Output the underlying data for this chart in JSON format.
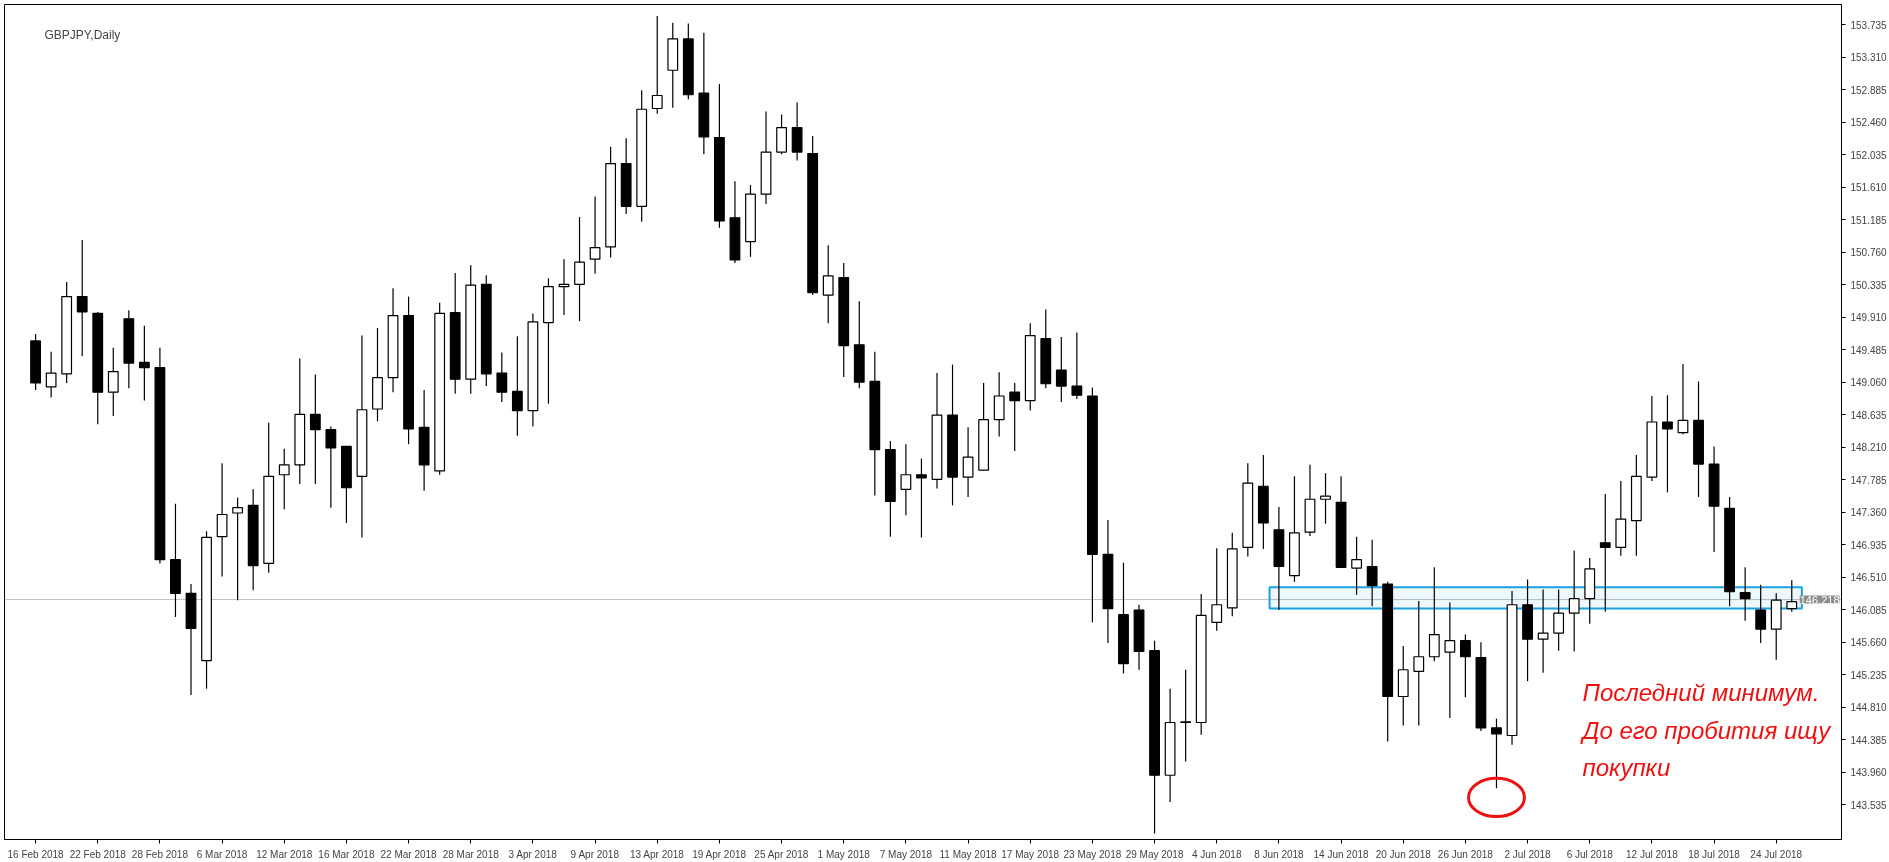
{
  "chart_data": {
    "type": "candlestick",
    "title": "GBPJPY,Daily",
    "categories": [
      "16 Feb 2018",
      null,
      null,
      null,
      "22 Feb 2018",
      null,
      null,
      null,
      "28 Feb 2018",
      null,
      null,
      null,
      "6 Mar 2018",
      null,
      null,
      null,
      "12 Mar 2018",
      null,
      null,
      null,
      "16 Mar 2018",
      null,
      null,
      null,
      "22 Mar 2018",
      null,
      null,
      null,
      "28 Mar 2018",
      null,
      null,
      null,
      "3 Apr 2018",
      null,
      null,
      null,
      "9 Apr 2018",
      null,
      null,
      null,
      "13 Apr 2018",
      null,
      null,
      null,
      "19 Apr 2018",
      null,
      null,
      null,
      "25 Apr 2018",
      null,
      null,
      null,
      "1 May 2018",
      null,
      null,
      null,
      "7 May 2018",
      null,
      null,
      null,
      "11 May 2018",
      null,
      null,
      null,
      "17 May 2018",
      null,
      null,
      null,
      "23 May 2018",
      null,
      null,
      null,
      "29 May 2018",
      null,
      null,
      null,
      "4 Jun 2018",
      null,
      null,
      null,
      "8 Jun 2018",
      null,
      null,
      null,
      "14 Jun 2018",
      null,
      null,
      null,
      "20 Jun 2018",
      null,
      null,
      null,
      "26 Jun 2018",
      null,
      null,
      null,
      "2 Jul 2018",
      null,
      null,
      null,
      "6 Jul 2018",
      null,
      null,
      null,
      "12 Jul 2018",
      null,
      null,
      null,
      "18 Jul 2018",
      null,
      null,
      null,
      "24 Jul 2018",
      null
    ],
    "ohlc": [
      [
        149.6,
        149.69,
        148.96,
        149.05
      ],
      [
        149.0,
        149.46,
        148.86,
        149.18
      ],
      [
        149.17,
        150.37,
        149.05,
        150.18
      ],
      [
        150.18,
        150.92,
        149.4,
        149.98
      ],
      [
        149.96,
        149.98,
        148.51,
        148.93
      ],
      [
        148.93,
        149.51,
        148.62,
        149.2
      ],
      [
        149.89,
        150.0,
        148.98,
        149.31
      ],
      [
        149.32,
        149.8,
        148.82,
        149.25
      ],
      [
        149.25,
        149.51,
        146.69,
        146.74
      ],
      [
        146.74,
        147.47,
        145.99,
        146.3
      ],
      [
        146.3,
        146.42,
        144.97,
        145.84
      ],
      [
        145.42,
        147.11,
        145.05,
        147.03
      ],
      [
        147.04,
        148.0,
        146.52,
        147.33
      ],
      [
        147.35,
        147.55,
        146.21,
        147.42
      ],
      [
        147.45,
        147.66,
        146.34,
        146.66
      ],
      [
        146.69,
        148.53,
        146.57,
        147.83
      ],
      [
        147.85,
        148.19,
        147.4,
        147.98
      ],
      [
        147.98,
        149.37,
        147.73,
        148.64
      ],
      [
        148.64,
        149.16,
        147.73,
        148.44
      ],
      [
        148.44,
        148.48,
        147.42,
        148.2
      ],
      [
        148.22,
        148.22,
        147.22,
        147.68
      ],
      [
        147.83,
        149.67,
        147.03,
        148.7
      ],
      [
        148.71,
        149.77,
        148.55,
        149.12
      ],
      [
        149.12,
        150.29,
        148.93,
        149.93
      ],
      [
        149.93,
        150.18,
        148.25,
        148.45
      ],
      [
        148.47,
        148.96,
        147.64,
        147.98
      ],
      [
        147.9,
        150.1,
        147.85,
        149.96
      ],
      [
        149.97,
        150.49,
        148.91,
        149.1
      ],
      [
        149.1,
        150.59,
        148.91,
        150.33
      ],
      [
        150.34,
        150.46,
        149.01,
        149.17
      ],
      [
        149.18,
        149.45,
        148.8,
        148.93
      ],
      [
        148.94,
        149.66,
        148.36,
        148.69
      ],
      [
        148.69,
        149.96,
        148.48,
        149.85
      ],
      [
        149.84,
        150.42,
        148.78,
        150.31
      ],
      [
        150.31,
        150.67,
        149.94,
        150.34
      ],
      [
        150.34,
        151.22,
        149.86,
        150.63
      ],
      [
        150.67,
        151.49,
        150.48,
        150.82
      ],
      [
        150.83,
        152.14,
        150.69,
        151.92
      ],
      [
        151.92,
        152.25,
        151.26,
        151.36
      ],
      [
        151.36,
        152.88,
        151.16,
        152.63
      ],
      [
        152.64,
        153.85,
        152.57,
        152.81
      ],
      [
        153.14,
        153.76,
        152.65,
        153.55
      ],
      [
        153.55,
        153.75,
        152.76,
        152.82
      ],
      [
        152.84,
        153.63,
        152.04,
        152.27
      ],
      [
        152.26,
        152.96,
        151.08,
        151.17
      ],
      [
        151.21,
        151.69,
        150.62,
        150.66
      ],
      [
        150.9,
        151.64,
        150.7,
        151.52
      ],
      [
        151.52,
        152.6,
        151.39,
        152.07
      ],
      [
        152.07,
        152.56,
        152.04,
        152.39
      ],
      [
        152.39,
        152.72,
        151.96,
        152.07
      ],
      [
        152.05,
        152.28,
        150.2,
        150.23
      ],
      [
        150.2,
        150.85,
        149.83,
        150.45
      ],
      [
        150.43,
        150.62,
        149.13,
        149.54
      ],
      [
        149.55,
        150.12,
        148.98,
        149.06
      ],
      [
        149.07,
        149.46,
        147.58,
        148.18
      ],
      [
        148.18,
        148.29,
        147.04,
        147.5
      ],
      [
        147.66,
        148.25,
        147.32,
        147.85
      ],
      [
        147.85,
        148.06,
        147.03,
        147.81
      ],
      [
        147.79,
        149.18,
        147.67,
        148.63
      ],
      [
        148.63,
        149.29,
        147.45,
        147.82
      ],
      [
        147.82,
        148.47,
        147.56,
        148.08
      ],
      [
        147.91,
        149.05,
        147.91,
        148.57
      ],
      [
        148.57,
        149.19,
        148.35,
        148.88
      ],
      [
        148.93,
        149.05,
        148.16,
        148.82
      ],
      [
        148.82,
        149.83,
        148.69,
        149.67
      ],
      [
        149.63,
        150.01,
        148.98,
        149.04
      ],
      [
        149.22,
        149.65,
        148.8,
        149.01
      ],
      [
        149.01,
        149.71,
        148.84,
        148.89
      ],
      [
        148.88,
        148.99,
        145.92,
        146.81
      ],
      [
        146.81,
        147.26,
        145.65,
        146.1
      ],
      [
        146.02,
        146.7,
        145.25,
        145.38
      ],
      [
        146.08,
        146.15,
        145.3,
        145.54
      ],
      [
        145.55,
        145.68,
        143.16,
        143.92
      ],
      [
        143.92,
        145.05,
        143.57,
        144.61
      ],
      [
        144.61,
        145.3,
        144.1,
        144.62
      ],
      [
        144.61,
        146.29,
        144.45,
        146.01
      ],
      [
        145.92,
        146.89,
        145.81,
        146.15
      ],
      [
        146.11,
        147.09,
        146.0,
        146.88
      ],
      [
        146.9,
        148.0,
        146.78,
        147.74
      ],
      [
        147.7,
        148.11,
        146.88,
        147.22
      ],
      [
        147.13,
        147.43,
        146.08,
        146.65
      ],
      [
        146.53,
        147.83,
        146.45,
        147.09
      ],
      [
        147.1,
        147.98,
        147.05,
        147.53
      ],
      [
        147.53,
        147.87,
        147.21,
        147.57
      ],
      [
        147.49,
        147.83,
        146.63,
        146.64
      ],
      [
        146.63,
        147.04,
        146.28,
        146.74
      ],
      [
        146.65,
        147.0,
        146.13,
        146.4
      ],
      [
        146.42,
        146.45,
        144.36,
        144.95
      ],
      [
        144.95,
        145.61,
        144.57,
        145.3
      ],
      [
        145.28,
        146.2,
        144.57,
        145.47
      ],
      [
        145.47,
        146.64,
        145.41,
        145.76
      ],
      [
        145.53,
        146.18,
        144.67,
        145.68
      ],
      [
        145.68,
        145.76,
        144.94,
        145.47
      ],
      [
        145.46,
        145.66,
        144.5,
        144.54
      ],
      [
        144.54,
        144.66,
        143.75,
        144.46
      ],
      [
        144.44,
        146.33,
        144.32,
        146.15
      ],
      [
        146.15,
        146.48,
        145.15,
        145.7
      ],
      [
        145.7,
        146.35,
        145.26,
        145.78
      ],
      [
        145.78,
        146.35,
        145.55,
        146.04
      ],
      [
        146.04,
        146.86,
        145.54,
        146.23
      ],
      [
        146.23,
        146.76,
        145.9,
        146.62
      ],
      [
        146.96,
        147.6,
        146.06,
        146.9
      ],
      [
        146.9,
        147.77,
        146.79,
        147.27
      ],
      [
        147.25,
        148.11,
        146.79,
        147.83
      ],
      [
        147.82,
        148.88,
        147.77,
        148.54
      ],
      [
        148.54,
        148.89,
        147.62,
        148.45
      ],
      [
        148.4,
        149.3,
        148.38,
        148.56
      ],
      [
        148.56,
        149.07,
        147.56,
        147.99
      ],
      [
        147.99,
        148.22,
        146.84,
        147.44
      ],
      [
        147.41,
        147.56,
        146.13,
        146.32
      ],
      [
        146.31,
        146.64,
        145.94,
        146.23
      ],
      [
        146.08,
        146.41,
        145.65,
        145.83
      ],
      [
        145.83,
        146.3,
        145.43,
        146.21
      ],
      [
        146.1,
        146.47,
        146.06,
        146.19
      ]
    ],
    "ylim": [
      143.08,
      154.0
    ],
    "yticks": [
      143.535,
      {
        "value": 143.96,
        "label": "143.960"
      },
      144.385,
      {
        "value": 144.81,
        "label": "144.810"
      },
      145.235,
      {
        "value": 145.66,
        "label": "145.660"
      },
      146.085,
      {
        "value": 146.51,
        "label": "146.510"
      },
      146.935,
      {
        "value": 147.36,
        "label": "147.360"
      },
      147.785,
      {
        "value": 148.21,
        "label": "148.210"
      },
      148.635,
      {
        "value": 149.06,
        "label": "149.060"
      },
      149.485,
      {
        "value": 149.91,
        "label": "149.910"
      },
      150.335,
      {
        "value": 150.76,
        "label": "150.760"
      },
      151.185,
      {
        "value": 151.61,
        "label": "151.610"
      },
      152.035,
      {
        "value": 152.46,
        "label": "152.460"
      },
      152.885,
      {
        "value": 153.31,
        "label": "153.310"
      },
      153.735
    ],
    "ref_lines": [
      {
        "axis": "y",
        "value": 146.218,
        "label": "146.218",
        "color": "#c0c0c0"
      }
    ],
    "bands": [
      {
        "axis": "y",
        "from": 146.1,
        "to": 146.38,
        "color": "#1ba1e2"
      }
    ],
    "annotations": [
      "Последний минимум.\nДо его пробития ищу\nпокупки"
    ],
    "grid": false
  }
}
